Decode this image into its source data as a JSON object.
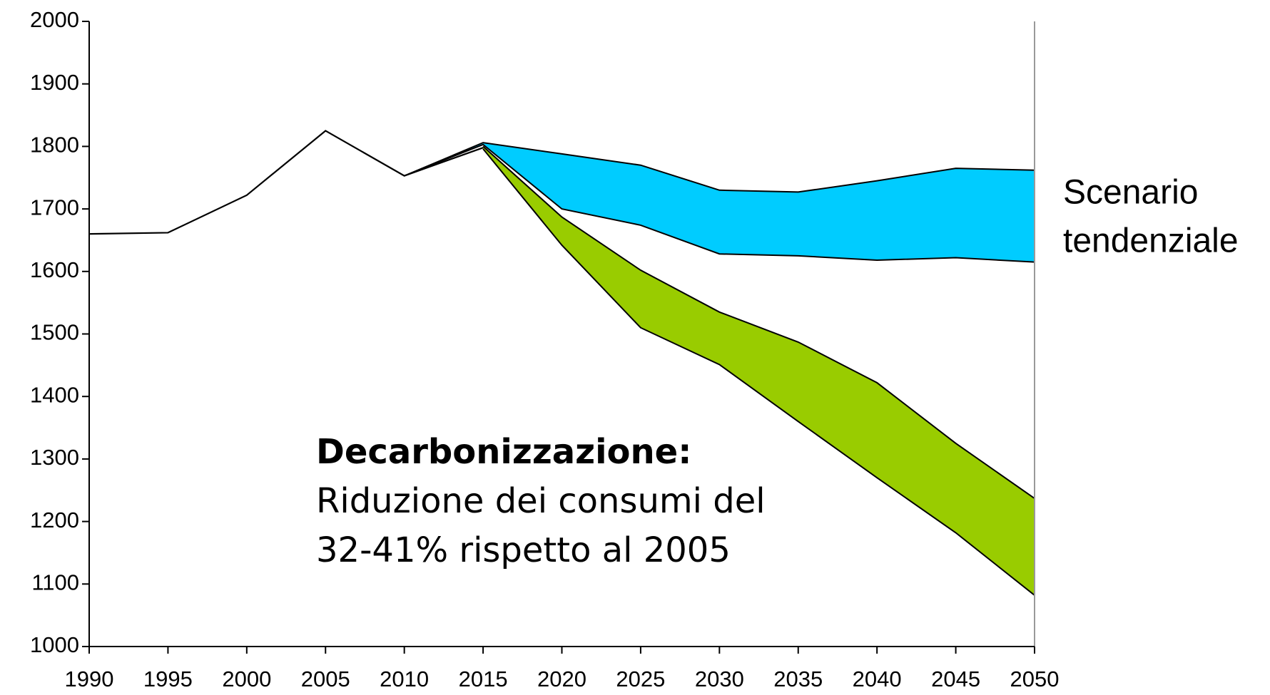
{
  "chart_data": {
    "type": "line",
    "x": [
      1990,
      1995,
      2000,
      2005,
      2010,
      2015,
      2020,
      2025,
      2030,
      2035,
      2040,
      2045,
      2050
    ],
    "xlim": [
      1990,
      2050
    ],
    "xticks": [
      1990,
      1995,
      2000,
      2005,
      2010,
      2015,
      2020,
      2025,
      2030,
      2035,
      2040,
      2045,
      2050
    ],
    "ylim": [
      1000,
      2000
    ],
    "yticks": [
      1000,
      1100,
      1200,
      1300,
      1400,
      1500,
      1600,
      1700,
      1800,
      1900,
      2000
    ],
    "series": [
      {
        "color": "#000000",
        "values": [
          1660,
          1662,
          1722,
          1825,
          1753,
          1798,
          null,
          null,
          null,
          null,
          null,
          null,
          null
        ]
      }
    ],
    "bands": [
      {
        "color": "#00ccff",
        "upper": [
          null,
          null,
          null,
          null,
          1753,
          1806,
          1788,
          1770,
          1730,
          1727,
          1745,
          1765,
          1762
        ],
        "lower": [
          null,
          null,
          null,
          null,
          1753,
          1803,
          1700,
          1674,
          1628,
          1625,
          1618,
          1622,
          1615
        ]
      },
      {
        "color": "#99cc00",
        "upper": [
          null,
          null,
          null,
          null,
          null,
          1800,
          1687,
          1602,
          1535,
          1487,
          1422,
          1325,
          1237
        ],
        "lower": [
          null,
          null,
          null,
          null,
          null,
          1796,
          1642,
          1510,
          1451,
          1360,
          1270,
          1182,
          1082
        ]
      }
    ],
    "annotations": [
      {
        "lines": [
          "Scenario",
          "tendenziale"
        ]
      },
      {
        "title": "Decarbonizzazione:",
        "lines": [
          "Riduzione dei consumi del",
          "32-41% rispetto al 2005"
        ]
      }
    ]
  }
}
